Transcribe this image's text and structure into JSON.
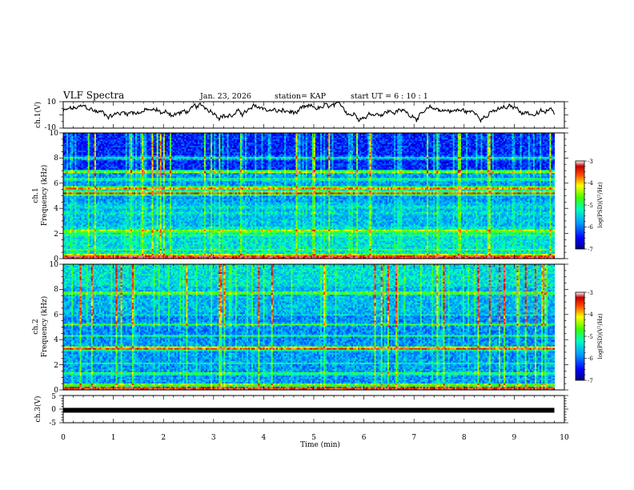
{
  "header": {
    "title": "VLF Spectra",
    "date": "Jan. 23, 2026",
    "station": "station= KAP",
    "start_ut": "start  UT =   6  : 10 : 1"
  },
  "chart_data": [
    {
      "id": "ch1-waveform",
      "type": "line",
      "ylabel": "ch.1(V)",
      "ylim": [
        -10,
        10
      ],
      "yticks": [
        "10",
        "-10"
      ],
      "xlim": [
        0,
        10
      ],
      "data_end_min": 9.8,
      "mean": 2.5
    },
    {
      "id": "ch1-spectrogram",
      "type": "heatmap",
      "ylabel_1": "ch.1",
      "ylabel_2": "Frequency  (kHz)",
      "ylim": [
        0,
        10
      ],
      "yticks": [
        "0",
        "2",
        "4",
        "6",
        "8",
        "10"
      ],
      "xlim": [
        0,
        10
      ],
      "data_end_min": 9.8,
      "bands": [
        {
          "f": 5.2,
          "level": 0.95
        },
        {
          "f": 5.6,
          "level": 0.85
        },
        {
          "f": 6.9,
          "level": 0.7
        },
        {
          "f": 6.3,
          "level": 0.55
        },
        {
          "f": 4.1,
          "level": 0.5
        },
        {
          "f": 2.2,
          "level": 0.75
        },
        {
          "f": 1.9,
          "level": 0.6
        },
        {
          "f": 0.7,
          "level": 0.55
        },
        {
          "f": 3.6,
          "level": 0.5
        },
        {
          "f": 8.0,
          "level": 0.45
        },
        {
          "f": 0.3,
          "level": 0.7
        }
      ],
      "colorbar": {
        "label": "log(PSD)(V²/Hz)",
        "min": -7,
        "max": -3,
        "ticks": [
          "-3",
          "-4",
          "-5",
          "-6",
          "-7"
        ]
      }
    },
    {
      "id": "ch2-spectrogram",
      "type": "heatmap",
      "ylabel_1": "ch.2",
      "ylabel_2": "Frequency  (kHz)",
      "ylim": [
        0,
        10
      ],
      "yticks": [
        "0",
        "2",
        "4",
        "6",
        "8",
        "10"
      ],
      "xlim": [
        0,
        10
      ],
      "data_end_min": 9.8,
      "bands": [
        {
          "f": 3.3,
          "level": 0.95
        },
        {
          "f": 7.7,
          "level": 0.7
        },
        {
          "f": 4.3,
          "level": 0.5
        },
        {
          "f": 5.2,
          "level": 0.55
        },
        {
          "f": 1.3,
          "level": 0.6
        },
        {
          "f": 0.4,
          "level": 0.7
        },
        {
          "f": 6.0,
          "level": 0.45
        },
        {
          "f": 2.1,
          "level": 0.45
        }
      ],
      "colorbar": {
        "label": "log(PSD)(V²/Hz)",
        "min": -7,
        "max": -3,
        "ticks": [
          "-3",
          "-4",
          "-5",
          "-6",
          "-7"
        ]
      }
    },
    {
      "id": "ch3-waveform",
      "type": "line",
      "ylabel": "ch.3(V)",
      "ylim": [
        -5,
        5
      ],
      "yticks": [
        "5",
        "0",
        "-5"
      ],
      "xlim": [
        0,
        10
      ],
      "data_end_min": 9.8,
      "level": -0.4
    }
  ],
  "xaxis": {
    "label": "Time  (min)",
    "ticks": [
      "0",
      "1",
      "2",
      "3",
      "4",
      "5",
      "6",
      "7",
      "8",
      "9",
      "10"
    ]
  },
  "colors": {
    "axis": "#000000",
    "background": "#ffffff"
  }
}
